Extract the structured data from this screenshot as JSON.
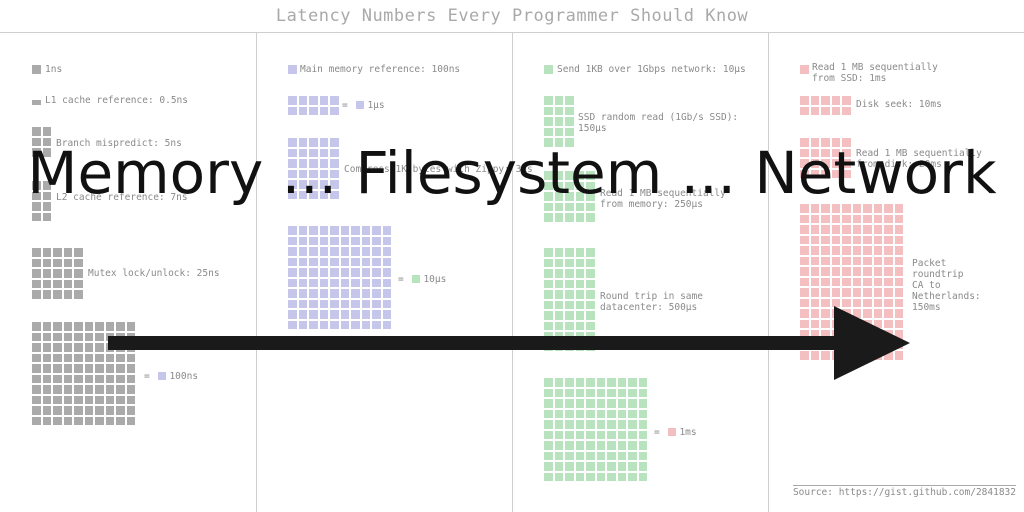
{
  "title": "Latency Numbers Every Programmer Should Know",
  "overlay_caption": "Memory ... Filesystem ... Network",
  "source": "Source: https://gist.github.com/2841832",
  "colors": {
    "memory": "#aaaaaa",
    "ram": "#c6c6ea",
    "network_fs": "#b9e3bf",
    "disk_network": "#f4bfc1",
    "text": "#8a8a8a",
    "arrow": "#1a1a1a"
  },
  "columns": [
    {
      "items": [
        {
          "label": "1ns"
        },
        {
          "label": "L1 cache reference: 0.5ns"
        },
        {
          "label": "Branch mispredict: 5ns"
        },
        {
          "label": "L2 cache reference: 7ns"
        },
        {
          "label": "Mutex lock/unlock: 25ns"
        },
        {
          "label": "",
          "equals": "= ",
          "equals_value": "100ns"
        }
      ]
    },
    {
      "items": [
        {
          "label": "Main memory reference: 100ns"
        },
        {
          "label": "",
          "equals": "= ",
          "equals_value": "1µs"
        },
        {
          "label": "Compress 1K bytes with Zippy: 3µs"
        },
        {
          "label": "",
          "equals": "= ",
          "equals_value": "10µs"
        }
      ]
    },
    {
      "items": [
        {
          "label": "Send 1KB over 1Gbps network: 10µs"
        },
        {
          "label": "SSD random read (1Gb/s SSD):\n150µs"
        },
        {
          "label": "Read 1 MB sequentially\nfrom memory: 250µs"
        },
        {
          "label": "Round trip in same\ndatacenter: 500µs"
        },
        {
          "label": "",
          "equals": "= ",
          "equals_value": "1ms"
        }
      ]
    },
    {
      "items": [
        {
          "label": "Read 1 MB sequentially\nfrom SSD: 1ms"
        },
        {
          "label": "Disk seek: 10ms"
        },
        {
          "label": "Read 1 MB sequentially\nfrom disk: 20ms"
        },
        {
          "label": "Packet\nroundtrip\nCA to\nNetherlands:\n150ms"
        }
      ]
    }
  ]
}
